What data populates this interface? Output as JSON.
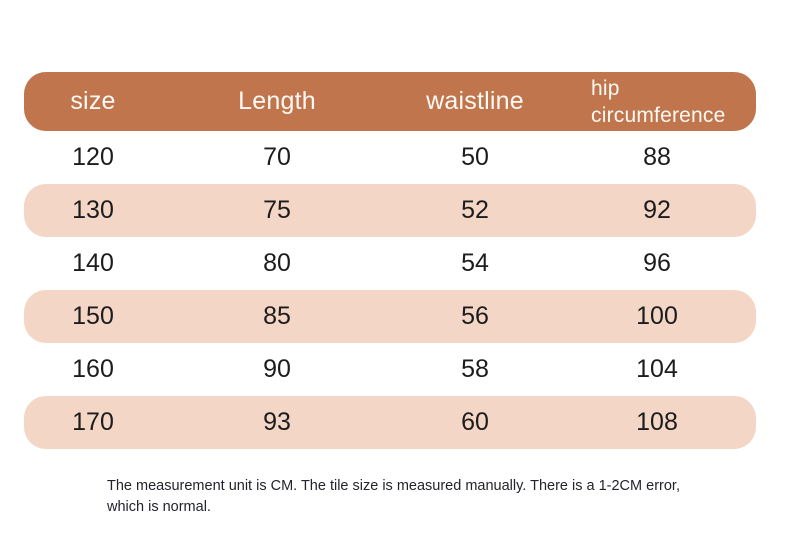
{
  "colors": {
    "header_bg": "#c0754d",
    "alt_row_bg": "#f3d6c5",
    "header_text": "#fdfaf5",
    "body_text": "#1c1c1c",
    "note_text": "#23232d",
    "page_bg": "#ffffff"
  },
  "size_chart": {
    "columns": [
      "size",
      "Length",
      "waistline",
      "hip circumference"
    ],
    "rows": [
      [
        "120",
        "70",
        "50",
        "88"
      ],
      [
        "130",
        "75",
        "52",
        "92"
      ],
      [
        "140",
        "80",
        "54",
        "96"
      ],
      [
        "150",
        "85",
        "56",
        "100"
      ],
      [
        "160",
        "90",
        "58",
        "104"
      ],
      [
        "170",
        "93",
        "60",
        "108"
      ]
    ]
  },
  "note": "The measurement unit is CM. The tile size is measured manually. There is a 1-2CM error, which is normal.",
  "chart_data": {
    "type": "table",
    "title": "",
    "columns": [
      "size",
      "Length",
      "waistline",
      "hip circumference"
    ],
    "rows": [
      [
        120,
        70,
        50,
        88
      ],
      [
        130,
        75,
        52,
        92
      ],
      [
        140,
        80,
        54,
        96
      ],
      [
        150,
        85,
        56,
        100
      ],
      [
        160,
        90,
        58,
        104
      ],
      [
        170,
        93,
        60,
        108
      ]
    ],
    "unit": "CM",
    "annotations": [
      "The measurement unit is CM. The tile size is measured manually. There is a 1-2CM error, which is normal."
    ]
  }
}
